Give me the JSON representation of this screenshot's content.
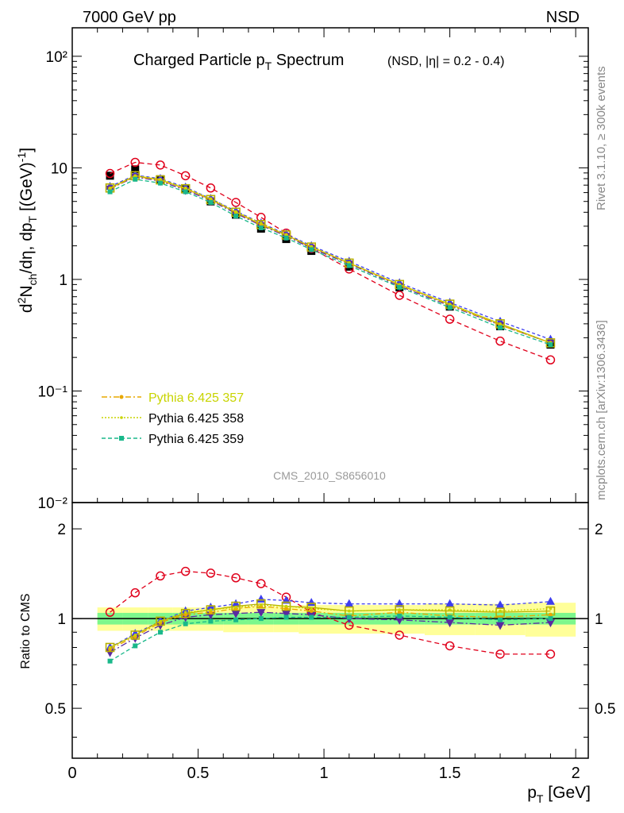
{
  "header": {
    "left": "7000 GeV pp",
    "right": "NSD"
  },
  "title_main": "Charged Particle p",
  "title_main_sub": "T",
  "title_main_tail": " Spectrum",
  "title_qual": "(NSD, |η| = 0.2 - 0.4)",
  "side_rivet": "Rivet 3.1.10, ≥ 300k events",
  "side_mcplots": "mcplots.cern.ch [arXiv:1306.3436]",
  "watermark": "CMS_2010_S8656010",
  "ylabel_top": "d²N_ch/dη, dp_T [(GeV)⁻¹]",
  "ylabel_bottom": "Ratio to CMS",
  "xlabel": "p_T [GeV]",
  "legend": [
    {
      "label": "Pythia 6.425 357",
      "color": "#c8d400"
    },
    {
      "label": "Pythia 6.425 358",
      "color": "#000000"
    },
    {
      "label": "Pythia 6.425 359",
      "color": "#000000"
    }
  ],
  "colors": {
    "data": "#000000",
    "band_inner": "#7cf78c",
    "band_outer": "#ffff99",
    "red": "#e0001b",
    "blue": "#3d3df0",
    "purple": "#5a2aa0",
    "teal": "#1ab88a",
    "olive": "#b8b000",
    "orange": "#e8a800",
    "yellow": "#c8d400"
  },
  "chart_data": {
    "type": "line",
    "x": [
      0.15,
      0.25,
      0.35,
      0.45,
      0.55,
      0.65,
      0.75,
      0.85,
      0.95,
      1.1,
      1.3,
      1.5,
      1.7,
      1.9
    ],
    "xlim": [
      0,
      2.05
    ],
    "upper": {
      "yscale": "log",
      "ylim": [
        0.01,
        180
      ],
      "yticks": [
        {
          "v": 100,
          "label": "10²"
        },
        {
          "v": 10,
          "label": "10"
        },
        {
          "v": 1,
          "label": "1"
        },
        {
          "v": 0.1,
          "label": "10⁻¹"
        },
        {
          "v": 0.01,
          "label": "10⁻²"
        }
      ],
      "data": [
        8.5,
        9.7,
        7.9,
        6.4,
        5.0,
        3.8,
        2.85,
        2.3,
        1.8,
        1.3,
        0.85,
        0.57,
        0.38,
        0.26
      ],
      "series": [
        {
          "name": "red",
          "values": [
            8.9,
            11.2,
            10.6,
            8.5,
            6.6,
            4.9,
            3.6,
            2.6,
            1.9,
            1.24,
            0.72,
            0.44,
            0.28,
            0.19
          ]
        },
        {
          "name": "blue",
          "values": [
            6.8,
            8.6,
            8.0,
            6.7,
            5.3,
            4.1,
            3.2,
            2.55,
            2.0,
            1.45,
            0.93,
            0.62,
            0.42,
            0.29
          ]
        },
        {
          "name": "purple",
          "values": [
            6.5,
            8.3,
            7.6,
            6.3,
            5.1,
            3.9,
            3.05,
            2.45,
            1.9,
            1.38,
            0.87,
            0.58,
            0.39,
            0.27
          ]
        },
        {
          "name": "olive",
          "values": [
            6.6,
            8.5,
            7.8,
            6.5,
            5.2,
            4.0,
            3.1,
            2.5,
            1.95,
            1.4,
            0.9,
            0.6,
            0.4,
            0.27
          ]
        },
        {
          "name": "Pythia 6.425 357",
          "values": [
            6.5,
            8.4,
            7.7,
            6.5,
            5.2,
            4.0,
            3.1,
            2.5,
            1.95,
            1.4,
            0.89,
            0.59,
            0.39,
            0.27
          ]
        },
        {
          "name": "Pythia 6.425 358",
          "values": [
            6.6,
            8.5,
            7.9,
            6.6,
            5.3,
            4.05,
            3.2,
            2.5,
            1.97,
            1.41,
            0.9,
            0.6,
            0.4,
            0.27
          ]
        },
        {
          "name": "Pythia 6.425 359",
          "values": [
            6.1,
            7.9,
            7.3,
            6.1,
            4.9,
            3.7,
            2.9,
            2.35,
            1.85,
            1.33,
            0.85,
            0.56,
            0.37,
            0.26
          ]
        }
      ]
    },
    "lower": {
      "yscale": "log",
      "ylim": [
        0.34,
        2.45
      ],
      "yticks": [
        {
          "v": 0.5,
          "label": "0.5"
        },
        {
          "v": 1,
          "label": "1"
        },
        {
          "v": 2,
          "label": "2"
        }
      ],
      "band_inner": [
        0.045,
        0.045,
        0.045,
        0.045,
        0.045,
        0.045,
        0.045,
        0.045,
        0.045,
        0.045,
        0.045,
        0.045,
        0.045,
        0.045
      ],
      "band_outer": [
        0.09,
        0.09,
        0.09,
        0.09,
        0.09,
        0.1,
        0.1,
        0.1,
        0.11,
        0.11,
        0.11,
        0.12,
        0.12,
        0.13
      ],
      "series": [
        {
          "name": "red",
          "values": [
            1.05,
            1.22,
            1.39,
            1.44,
            1.42,
            1.37,
            1.31,
            1.18,
            1.05,
            0.95,
            0.88,
            0.81,
            0.76,
            0.76
          ]
        },
        {
          "name": "blue",
          "values": [
            0.8,
            0.89,
            0.98,
            1.06,
            1.09,
            1.12,
            1.16,
            1.15,
            1.13,
            1.12,
            1.12,
            1.12,
            1.11,
            1.14
          ]
        },
        {
          "name": "purple",
          "values": [
            0.77,
            0.86,
            0.95,
            1.01,
            1.03,
            1.04,
            1.05,
            1.04,
            1.03,
            1.0,
            0.99,
            0.97,
            0.95,
            0.97
          ]
        },
        {
          "name": "olive",
          "values": [
            0.8,
            0.88,
            0.98,
            1.04,
            1.07,
            1.1,
            1.12,
            1.1,
            1.09,
            1.06,
            1.07,
            1.06,
            1.05,
            1.06
          ]
        },
        {
          "name": "Pythia 6.425 357",
          "values": [
            0.79,
            0.87,
            0.97,
            1.03,
            1.05,
            1.08,
            1.1,
            1.08,
            1.06,
            1.02,
            1.05,
            1.02,
            1.01,
            1.03
          ]
        },
        {
          "name": "Pythia 6.425 358",
          "values": [
            0.8,
            0.88,
            0.98,
            1.05,
            1.07,
            1.09,
            1.11,
            1.1,
            1.08,
            1.06,
            1.07,
            1.07,
            1.06,
            1.08
          ]
        },
        {
          "name": "Pythia 6.425 359",
          "values": [
            0.72,
            0.81,
            0.9,
            0.96,
            0.98,
            0.99,
            1.0,
            1.01,
            1.01,
            1.01,
            1.02,
            1.01,
            0.99,
            1.0
          ]
        }
      ]
    },
    "xticks": [
      0,
      0.5,
      1,
      1.5,
      2
    ]
  }
}
